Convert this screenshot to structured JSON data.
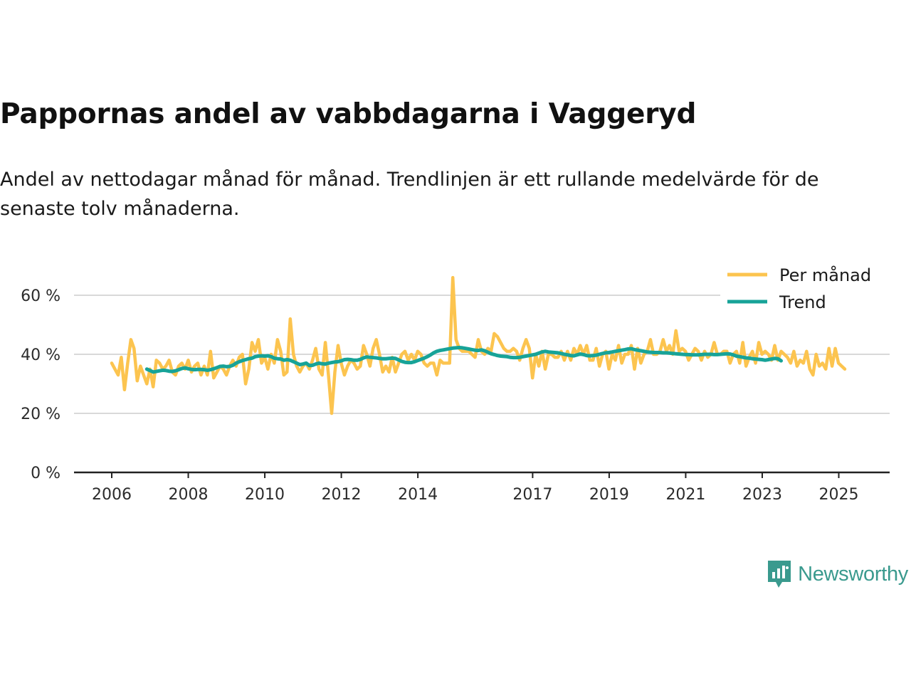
{
  "title": "Pappornas andel av vabbdagarna i Vaggeryd",
  "subtitle": "Andel av nettodagar månad för månad. Trendlinjen är ett rullande medelvärde för de senaste tolv månaderna.",
  "brand": "Newsworthy",
  "colors": {
    "monthly": "#fcc44f",
    "trend": "#17a398",
    "brand": "#3a9a8e",
    "grid": "#d9d9d9",
    "axis": "#222222"
  },
  "chart_data": {
    "type": "line",
    "title": "Pappornas andel av vabbdagarna i Vaggeryd",
    "xlabel": "",
    "ylabel": "",
    "ylim": [
      0,
      70
    ],
    "y_ticks": [
      0,
      20,
      40,
      60
    ],
    "y_tick_labels": [
      "0 %",
      "20 %",
      "40 %",
      "60 %"
    ],
    "x_start": 2006.0,
    "x_end": 2025.4,
    "x_step": 0.0833,
    "x_ticks": [
      2006,
      2008,
      2010,
      2012,
      2014,
      2017,
      2019,
      2021,
      2023,
      2025
    ],
    "x_tick_labels": [
      "2006",
      "2008",
      "2010",
      "2012",
      "2014",
      "2017",
      "2019",
      "2021",
      "2023",
      "2025"
    ],
    "legend": [
      "Per månad",
      "Trend"
    ],
    "legend_position": "top-right",
    "series": [
      {
        "name": "Per månad",
        "start": 2006.0,
        "values": [
          37,
          35,
          33,
          39,
          28,
          37,
          45,
          42,
          31,
          36,
          33,
          30,
          35,
          29,
          38,
          37,
          35,
          36,
          38,
          34,
          33,
          36,
          37,
          35,
          38,
          34,
          36,
          37,
          33,
          36,
          33,
          41,
          32,
          34,
          36,
          35,
          33,
          36,
          38,
          36,
          39,
          40,
          30,
          35,
          44,
          41,
          45,
          37,
          39,
          35,
          40,
          37,
          45,
          41,
          33,
          34,
          52,
          40,
          36,
          34,
          36,
          37,
          35,
          38,
          42,
          35,
          33,
          44,
          33,
          20,
          34,
          43,
          37,
          33,
          36,
          38,
          37,
          35,
          36,
          43,
          40,
          36,
          42,
          45,
          40,
          34,
          36,
          34,
          39,
          34,
          37,
          40,
          41,
          38,
          40,
          38,
          41,
          40,
          37,
          36,
          37,
          37,
          33,
          38,
          37,
          37,
          37,
          66,
          45,
          42,
          41,
          41,
          41,
          40,
          39,
          45,
          41,
          40,
          42,
          41,
          47,
          46,
          44,
          42,
          41,
          41,
          42,
          41,
          38,
          42,
          45,
          42,
          32,
          40,
          36,
          41,
          35,
          40,
          40,
          39,
          39,
          41,
          38,
          41,
          38,
          42,
          40,
          43,
          40,
          43,
          38,
          38,
          42,
          36,
          40,
          41,
          35,
          40,
          38,
          43,
          37,
          40,
          40,
          43,
          35,
          42,
          37,
          40,
          41,
          45,
          40,
          40,
          41,
          45,
          41,
          43,
          40,
          48,
          41,
          42,
          41,
          38,
          40,
          42,
          41,
          38,
          41,
          39,
          40,
          44,
          40,
          40,
          41,
          41,
          37,
          40,
          41,
          37,
          44,
          36,
          39,
          41,
          37,
          44,
          40,
          41,
          40,
          38,
          43,
          38,
          41,
          40,
          39,
          37,
          41,
          36,
          38,
          37,
          41,
          35,
          33,
          40,
          36,
          37,
          35,
          42,
          36,
          42,
          37,
          36,
          35
        ]
      },
      {
        "name": "Trend",
        "start": 2006.917,
        "values": [
          35,
          34.5,
          34,
          34.2,
          34.4,
          34.6,
          34.5,
          34.3,
          34.2,
          34.4,
          34.8,
          35.2,
          35.4,
          35.1,
          34.9,
          34.8,
          34.9,
          34.9,
          34.8,
          34.6,
          34.8,
          35.1,
          35.5,
          35.9,
          36,
          35.8,
          35.9,
          36.3,
          37,
          37.5,
          37.9,
          38.2,
          38.5,
          38.7,
          39.2,
          39.4,
          39.5,
          39.4,
          39.5,
          39.2,
          38.7,
          38.5,
          38.4,
          38,
          38.2,
          38,
          37.5,
          37,
          36.5,
          36.7,
          37,
          36.2,
          36.3,
          36.7,
          37,
          36.8,
          36.7,
          37,
          37.2,
          37.4,
          37.5,
          37.8,
          38.2,
          38.3,
          38.2,
          38,
          38,
          38.3,
          38.8,
          39.1,
          39,
          38.9,
          38.8,
          38.6,
          38.5,
          38.5,
          38.6,
          38.7,
          38.6,
          38.1,
          37.6,
          37.3,
          37.2,
          37.2,
          37.5,
          37.9,
          38.3,
          38.7,
          39.2,
          39.8,
          40.5,
          41,
          41.3,
          41.5,
          41.7,
          41.9,
          42.1,
          42.2,
          42.3,
          42.2,
          42,
          41.8,
          41.6,
          41.4,
          41.3,
          41.5,
          41.2,
          40.7,
          40.2,
          39.9,
          39.6,
          39.4,
          39.3,
          39.2,
          39,
          38.9,
          38.9,
          39,
          39.2,
          39.4,
          39.6,
          39.8,
          40,
          40.4,
          40.8,
          41,
          40.8,
          40.7,
          40.6,
          40.5,
          40.3,
          40,
          39.8,
          39.6,
          39.5,
          39.8,
          40.1,
          39.9,
          39.6,
          39.5,
          39.6,
          39.7,
          40,
          40.3,
          40.5,
          40.6,
          40.8,
          41,
          41.2,
          41.4,
          41.6,
          41.8,
          41.9,
          41.6,
          41.4,
          41.2,
          41,
          40.8,
          40.7,
          40.6,
          40.6,
          40.6,
          40.5,
          40.5,
          40.4,
          40.3,
          40.2,
          40.1,
          40,
          39.9,
          39.9,
          39.8,
          39.8,
          39.8,
          39.9,
          40,
          40,
          40,
          39.9,
          39.9,
          40,
          40.1,
          40.2,
          40.1,
          39.8,
          39.4,
          39.2,
          39,
          38.8,
          38.7,
          38.5,
          38.4,
          38.3,
          38.2,
          38,
          38.2,
          38.4,
          38.6,
          38.5,
          37.8
        ]
      }
    ]
  }
}
